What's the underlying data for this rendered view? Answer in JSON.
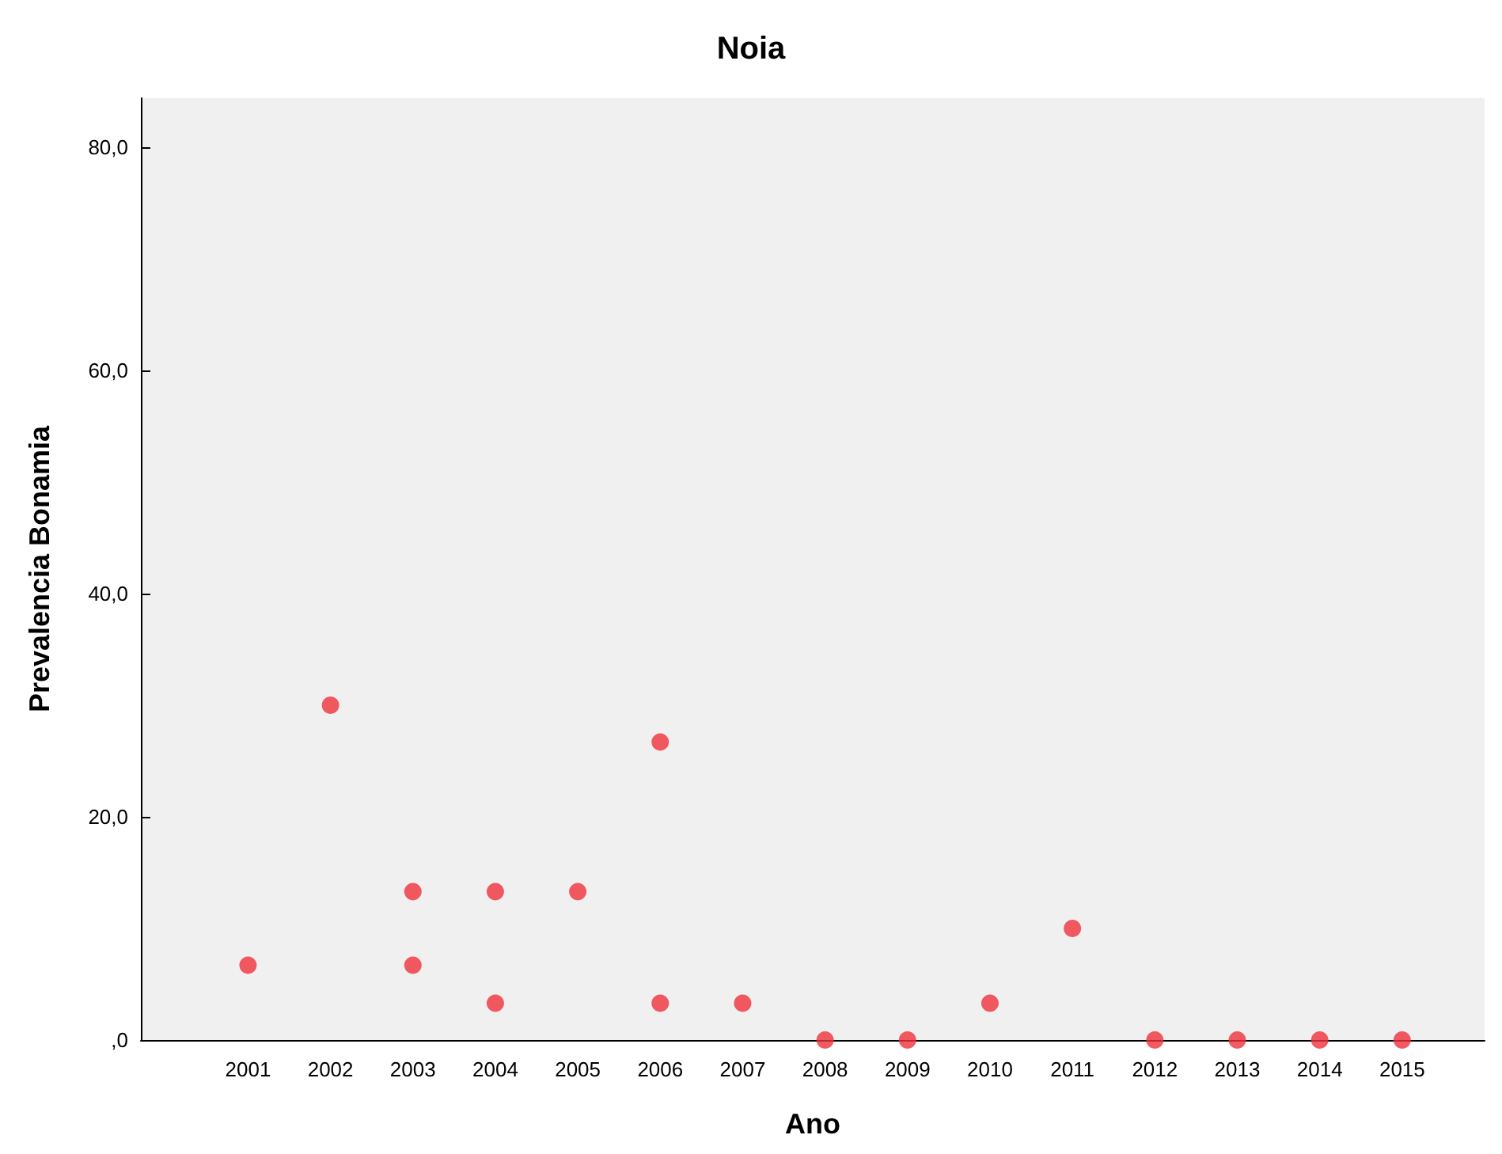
{
  "chart_data": {
    "type": "scatter",
    "title": "Noia",
    "xlabel": "Ano",
    "ylabel": "Prevalencia Bonamia",
    "x": [
      2001,
      2002,
      2003,
      2003,
      2004,
      2004,
      2005,
      2006,
      2006,
      2007,
      2008,
      2009,
      2010,
      2011,
      2012,
      2013,
      2014,
      2015
    ],
    "values": [
      6.7,
      30,
      13.3,
      6.7,
      13.3,
      3.3,
      13.3,
      26.7,
      3.3,
      3.3,
      0,
      0,
      3.3,
      10,
      0,
      0,
      0,
      0
    ],
    "color": "#f0323c",
    "marker": "circle",
    "grid": false,
    "xlim": [
      1999.7,
      2016
    ],
    "xticks": [
      2001,
      2002,
      2003,
      2004,
      2005,
      2006,
      2007,
      2008,
      2009,
      2010,
      2011,
      2012,
      2013,
      2014,
      2015
    ],
    "ylim": [
      0,
      84.4
    ],
    "yticks": [
      {
        "value": 0,
        "label": ",0"
      },
      {
        "value": 20,
        "label": "20,0"
      },
      {
        "value": 40,
        "label": "40,0"
      },
      {
        "value": 60,
        "label": "60,0"
      },
      {
        "value": 80,
        "label": "80,0"
      }
    ]
  }
}
